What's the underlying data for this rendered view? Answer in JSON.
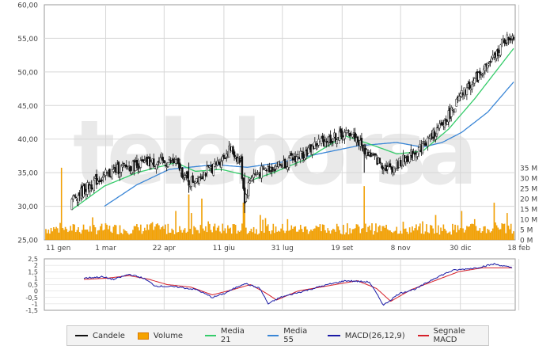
{
  "watermark": "teleborsa",
  "colors": {
    "candle": "#111111",
    "volume": "#f5a300",
    "ma21": "#35cc6a",
    "ma55": "#3a86d6",
    "macd": "#1a1aa6",
    "signal": "#d6202a",
    "grid": "#d7d7d7",
    "frame": "#9a9a9a"
  },
  "legend": {
    "candles": "Candele",
    "volume": "Volume",
    "ma21": "Media 21",
    "ma55": "Media 55",
    "macd": "MACD(26,12,9)",
    "signal": "Segnale MACD"
  },
  "chart_data": [
    {
      "type": "line",
      "panel": "price",
      "x_tick_labels": [
        "11 gen",
        "1 mar",
        "22 apr",
        "11 giu",
        "31 lug",
        "19 set",
        "8 nov",
        "30 dic",
        "18 feb"
      ],
      "y_tick_labels": [
        "25,00",
        "30,00",
        "35,00",
        "40,00",
        "45,00",
        "50,00",
        "55,00",
        "60,00"
      ],
      "ylim": [
        25,
        60
      ],
      "grid": true,
      "price_anchors": [
        [
          0,
          29.5
        ],
        [
          20,
          31
        ],
        [
          40,
          34
        ],
        [
          55,
          35.5
        ],
        [
          80,
          36.5
        ],
        [
          100,
          36.5
        ],
        [
          110,
          33.5
        ],
        [
          130,
          36
        ],
        [
          142,
          38.5
        ],
        [
          150,
          36.5
        ],
        [
          153,
          31
        ],
        [
          158,
          34.5
        ],
        [
          170,
          35.5
        ],
        [
          185,
          36.5
        ],
        [
          200,
          38
        ],
        [
          210,
          39.5
        ],
        [
          235,
          41
        ],
        [
          245,
          38.5
        ],
        [
          257,
          36.5
        ],
        [
          265,
          35.5
        ],
        [
          280,
          37.5
        ],
        [
          290,
          39
        ],
        [
          305,
          42
        ],
        [
          320,
          46.5
        ],
        [
          335,
          50
        ],
        [
          345,
          52
        ],
        [
          352,
          54.5
        ],
        [
          360,
          55.5
        ]
      ],
      "ma21_anchors": [
        [
          20,
          29.5
        ],
        [
          45,
          33
        ],
        [
          70,
          35
        ],
        [
          100,
          36.5
        ],
        [
          115,
          35.2
        ],
        [
          135,
          35.5
        ],
        [
          150,
          34.8
        ],
        [
          160,
          34
        ],
        [
          175,
          35
        ],
        [
          200,
          37
        ],
        [
          230,
          40.5
        ],
        [
          250,
          39.2
        ],
        [
          270,
          37.8
        ],
        [
          290,
          38.2
        ],
        [
          310,
          41.5
        ],
        [
          330,
          46
        ],
        [
          350,
          51
        ],
        [
          360,
          53.5
        ]
      ],
      "ma55_anchors": [
        [
          45,
          30
        ],
        [
          70,
          33.2
        ],
        [
          95,
          35.5
        ],
        [
          130,
          36.2
        ],
        [
          155,
          35.8
        ],
        [
          180,
          36.5
        ],
        [
          210,
          37.8
        ],
        [
          240,
          39
        ],
        [
          270,
          39.5
        ],
        [
          290,
          38.8
        ],
        [
          305,
          39.5
        ],
        [
          320,
          41
        ],
        [
          340,
          44
        ],
        [
          360,
          48.5
        ]
      ],
      "volume_axis_labels": [
        "0 M",
        "5 M",
        "10 M",
        "15 M",
        "20 M",
        "25 M",
        "30 M",
        "35 M"
      ],
      "volume_range_millions": [
        0,
        35
      ],
      "volume_spike_millions": [
        [
          12,
          35
        ],
        [
          100,
          14
        ],
        [
          110,
          22
        ],
        [
          112,
          13
        ],
        [
          120,
          20
        ],
        [
          152,
          18
        ],
        [
          153,
          24
        ],
        [
          165,
          12
        ],
        [
          186,
          10
        ],
        [
          245,
          26
        ],
        [
          300,
          12
        ],
        [
          320,
          14
        ],
        [
          330,
          10
        ],
        [
          345,
          18
        ],
        [
          355,
          13
        ]
      ]
    },
    {
      "type": "line",
      "panel": "macd",
      "y_tick_labels": [
        "2,5",
        "2",
        "1,5",
        "1",
        "0,5",
        "0",
        "-0,5",
        "-1",
        "-1,5"
      ],
      "ylim": [
        -1.5,
        2.5
      ],
      "series": [
        {
          "name": "MACD(26,12,9)",
          "anchors": [
            [
              0,
              1
            ],
            [
              15,
              1.1
            ],
            [
              25,
              0.9
            ],
            [
              38,
              1.3
            ],
            [
              50,
              1
            ],
            [
              60,
              0.4
            ],
            [
              80,
              0.3
            ],
            [
              95,
              0.1
            ],
            [
              108,
              -0.5
            ],
            [
              118,
              -0.2
            ],
            [
              135,
              0.6
            ],
            [
              148,
              0.2
            ],
            [
              155,
              -1
            ],
            [
              165,
              -0.5
            ],
            [
              185,
              0
            ],
            [
              205,
              0.5
            ],
            [
              220,
              0.8
            ],
            [
              240,
              0.7
            ],
            [
              252,
              -1.1
            ],
            [
              265,
              -0.2
            ],
            [
              280,
              0.2
            ],
            [
              295,
              1
            ],
            [
              310,
              1.6
            ],
            [
              330,
              1.8
            ],
            [
              345,
              2.1
            ],
            [
              360,
              1.8
            ]
          ]
        },
        {
          "name": "Segnale MACD",
          "anchors": [
            [
              0,
              0.9
            ],
            [
              20,
              1
            ],
            [
              38,
              1.2
            ],
            [
              55,
              0.9
            ],
            [
              70,
              0.5
            ],
            [
              90,
              0.3
            ],
            [
              108,
              -0.3
            ],
            [
              125,
              0.1
            ],
            [
              140,
              0.5
            ],
            [
              152,
              -0.1
            ],
            [
              162,
              -0.7
            ],
            [
              180,
              0
            ],
            [
              205,
              0.4
            ],
            [
              230,
              0.8
            ],
            [
              246,
              0.2
            ],
            [
              258,
              -0.8
            ],
            [
              275,
              0.1
            ],
            [
              295,
              0.8
            ],
            [
              315,
              1.5
            ],
            [
              335,
              1.8
            ],
            [
              360,
              1.8
            ]
          ]
        }
      ]
    }
  ]
}
